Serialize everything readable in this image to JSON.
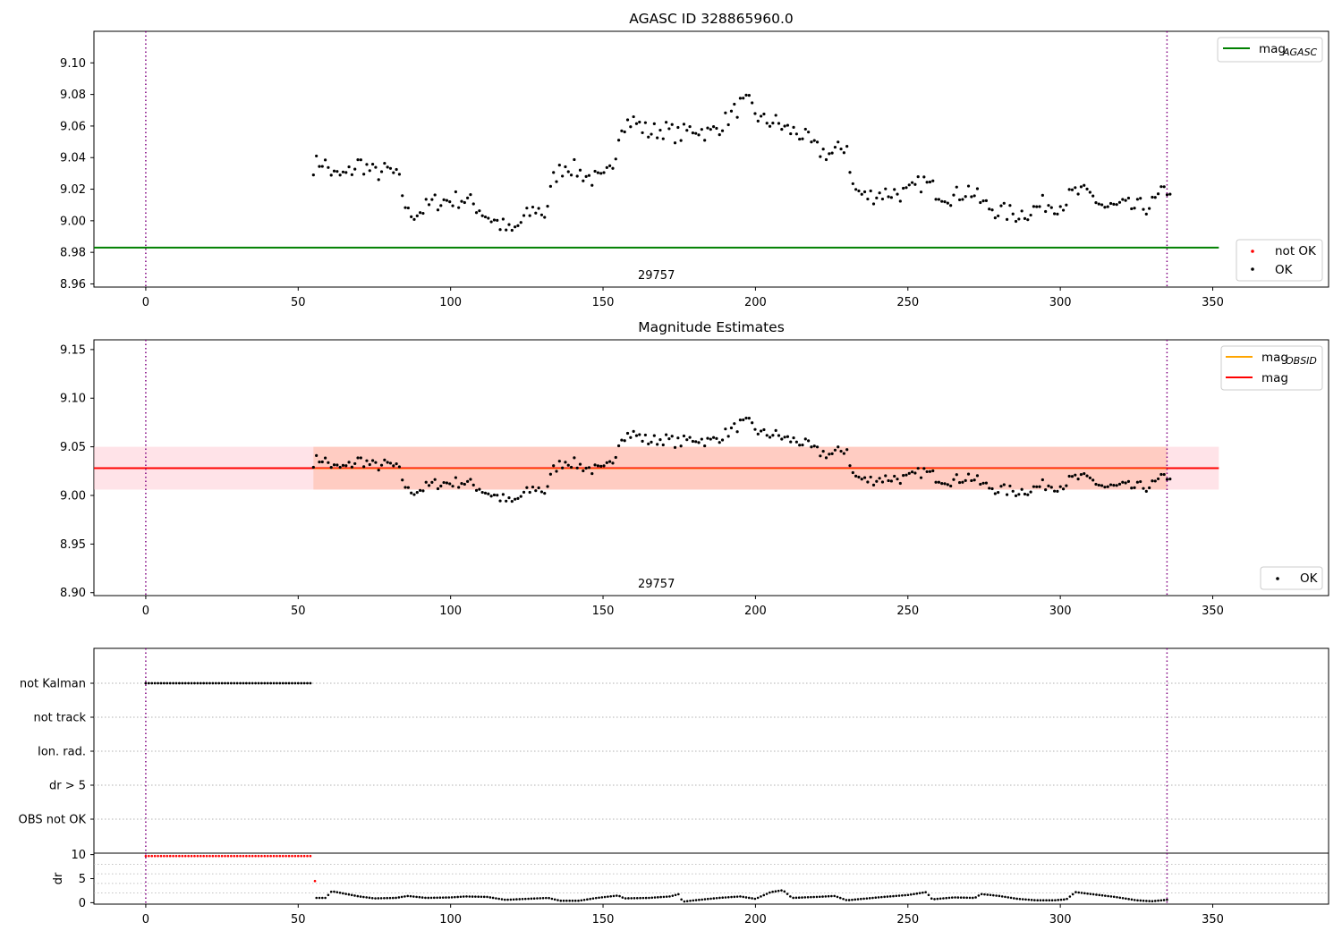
{
  "colors": {
    "ok": "#000000",
    "not_ok": "#ff0000",
    "mag_agasc": "#008000",
    "mag_obsid": "#ffa500",
    "mag": "#ff0000",
    "band": "#ffc0cb",
    "band_overlap": "#ffa07a",
    "obs_boundary": "#800080",
    "grid": "#b0b0b0"
  },
  "chart_data": [
    {
      "type": "scatter",
      "title": "AGASC ID 328865960.0",
      "xlim": [
        -17,
        388
      ],
      "ylim": [
        8.958,
        9.12
      ],
      "xticks": [
        0,
        50,
        100,
        150,
        200,
        250,
        300,
        350
      ],
      "yticks": [
        "8.96",
        "8.98",
        "9.00",
        "9.02",
        "9.04",
        "9.06",
        "9.08",
        "9.10"
      ],
      "obsid_label": "29757",
      "obs_boundaries": [
        0,
        335
      ],
      "mag_agasc": {
        "value": 8.983,
        "x_range": [
          -17,
          352
        ]
      },
      "legend_lines": [
        "mag",
        "AGASC"
      ],
      "legend_points": [
        "not OK",
        "OK"
      ],
      "legend_placement": [
        "upper right",
        "lower right"
      ],
      "series": [
        {
          "name": "OK",
          "keypoints": [
            [
              55,
              9.035
            ],
            [
              58,
              9.038
            ],
            [
              62,
              9.028
            ],
            [
              66,
              9.029
            ],
            [
              70,
              9.037
            ],
            [
              75,
              9.03
            ],
            [
              80,
              9.032
            ],
            [
              83,
              9.026
            ],
            [
              86,
              9.004
            ],
            [
              90,
              9.006
            ],
            [
              95,
              9.012
            ],
            [
              100,
              9.013
            ],
            [
              104,
              9.014
            ],
            [
              108,
              9.01
            ],
            [
              112,
              9.003
            ],
            [
              116,
              8.998
            ],
            [
              120,
              8.992
            ],
            [
              124,
              9.001
            ],
            [
              128,
              9.008
            ],
            [
              131,
              9.004
            ],
            [
              134,
              9.028
            ],
            [
              138,
              9.036
            ],
            [
              142,
              9.031
            ],
            [
              146,
              9.027
            ],
            [
              150,
              9.025
            ],
            [
              153,
              9.034
            ],
            [
              156,
              9.062
            ],
            [
              160,
              9.063
            ],
            [
              165,
              9.056
            ],
            [
              170,
              9.058
            ],
            [
              175,
              9.054
            ],
            [
              180,
              9.059
            ],
            [
              185,
              9.055
            ],
            [
              190,
              9.063
            ],
            [
              195,
              9.073
            ],
            [
              198,
              9.074
            ],
            [
              202,
              9.063
            ],
            [
              206,
              9.063
            ],
            [
              210,
              9.058
            ],
            [
              215,
              9.055
            ],
            [
              220,
              9.045
            ],
            [
              225,
              9.042
            ],
            [
              230,
              9.048
            ],
            [
              232,
              9.021
            ],
            [
              236,
              9.015
            ],
            [
              240,
              9.017
            ],
            [
              245,
              9.018
            ],
            [
              250,
              9.017
            ],
            [
              255,
              9.025
            ],
            [
              260,
              9.018
            ],
            [
              265,
              9.015
            ],
            [
              270,
              9.02
            ],
            [
              275,
              9.01
            ],
            [
              280,
              9.006
            ],
            [
              285,
              9.004
            ],
            [
              290,
              9.006
            ],
            [
              295,
              9.011
            ],
            [
              300,
              9.01
            ],
            [
              305,
              9.018
            ],
            [
              310,
              9.016
            ],
            [
              315,
              9.008
            ],
            [
              320,
              9.009
            ],
            [
              325,
              9.008
            ],
            [
              330,
              9.01
            ],
            [
              335,
              9.02
            ]
          ],
          "x_range": [
            55,
            336
          ],
          "point_count": 290,
          "noise": 0.006
        },
        {
          "name": "not OK",
          "values": []
        }
      ]
    },
    {
      "type": "scatter",
      "title": "Magnitude Estimates",
      "xlim": [
        -17,
        388
      ],
      "ylim": [
        8.897,
        9.16
      ],
      "xticks": [
        0,
        50,
        100,
        150,
        200,
        250,
        300,
        350
      ],
      "yticks": [
        "8.90",
        "8.95",
        "9.00",
        "9.05",
        "9.10",
        "9.15"
      ],
      "obsid_label": "29757",
      "obs_boundaries": [
        0,
        335
      ],
      "mag_obsid": {
        "value": 9.028,
        "band": [
          9.006,
          9.05
        ],
        "x_range": [
          55,
          335
        ]
      },
      "mag": {
        "value": 9.028,
        "band": [
          9.006,
          9.05
        ],
        "x_range": [
          -17,
          352
        ]
      },
      "legend_lines": [
        [
          "mag",
          "OBSID"
        ],
        [
          "mag",
          ""
        ]
      ],
      "legend_points": [
        "OK"
      ],
      "legend_placement": [
        "upper right",
        "lower right"
      ],
      "series": [
        {
          "name": "OK",
          "same_as_panel": 0
        }
      ]
    },
    {
      "type": "scatter",
      "title": "",
      "xlim": [
        -17,
        388
      ],
      "obs_boundaries": [
        0,
        335
      ],
      "flag_labels": [
        "not Kalman",
        "not track",
        "Ion. rad.",
        "dr > 5",
        "OBS not OK"
      ],
      "flags": {
        "not Kalman": [
          0,
          54
        ],
        "not track": [],
        "Ion. rad.": [],
        "dr > 5": [],
        "OBS not OK": []
      }
    },
    {
      "type": "scatter",
      "title": "",
      "ylabel": "dr",
      "xlim": [
        -17,
        388
      ],
      "ylim": [
        -0.3,
        10.3
      ],
      "xticks": [
        0,
        50,
        100,
        150,
        200,
        250,
        300,
        350
      ],
      "yticks": [
        "0",
        "5",
        "10"
      ],
      "obs_boundaries": [
        0,
        335
      ],
      "not_ok": {
        "x_range": [
          0,
          54
        ],
        "value": 9.7,
        "extra": [
          [
            55.5,
            4.5
          ]
        ]
      },
      "keypoints": [
        [
          56,
          1.0
        ],
        [
          59,
          1.0
        ],
        [
          61,
          2.4
        ],
        [
          65,
          1.9
        ],
        [
          70,
          1.3
        ],
        [
          75,
          0.9
        ],
        [
          82,
          1.0
        ],
        [
          86,
          1.4
        ],
        [
          92,
          1.0
        ],
        [
          100,
          1.1
        ],
        [
          105,
          1.3
        ],
        [
          112,
          1.2
        ],
        [
          118,
          0.6
        ],
        [
          125,
          0.8
        ],
        [
          132,
          1.0
        ],
        [
          136,
          0.4
        ],
        [
          142,
          0.4
        ],
        [
          148,
          1.0
        ],
        [
          155,
          1.5
        ],
        [
          157,
          0.9
        ],
        [
          165,
          1.0
        ],
        [
          172,
          1.3
        ],
        [
          175,
          1.8
        ],
        [
          176,
          0.2
        ],
        [
          180,
          0.5
        ],
        [
          188,
          1.0
        ],
        [
          195,
          1.3
        ],
        [
          200,
          0.8
        ],
        [
          205,
          2.2
        ],
        [
          209,
          2.6
        ],
        [
          212,
          1.0
        ],
        [
          220,
          1.2
        ],
        [
          226,
          1.4
        ],
        [
          230,
          0.5
        ],
        [
          235,
          0.8
        ],
        [
          242,
          1.2
        ],
        [
          250,
          1.6
        ],
        [
          256,
          2.2
        ],
        [
          258,
          0.7
        ],
        [
          265,
          1.1
        ],
        [
          272,
          1.0
        ],
        [
          274,
          1.8
        ],
        [
          280,
          1.4
        ],
        [
          286,
          0.8
        ],
        [
          292,
          0.5
        ],
        [
          298,
          0.5
        ],
        [
          302,
          0.7
        ],
        [
          305,
          2.2
        ],
        [
          310,
          1.8
        ],
        [
          318,
          1.2
        ],
        [
          325,
          0.5
        ],
        [
          330,
          0.3
        ],
        [
          335,
          0.6
        ]
      ],
      "x_range": [
        56,
        335
      ],
      "point_count": 290
    }
  ]
}
